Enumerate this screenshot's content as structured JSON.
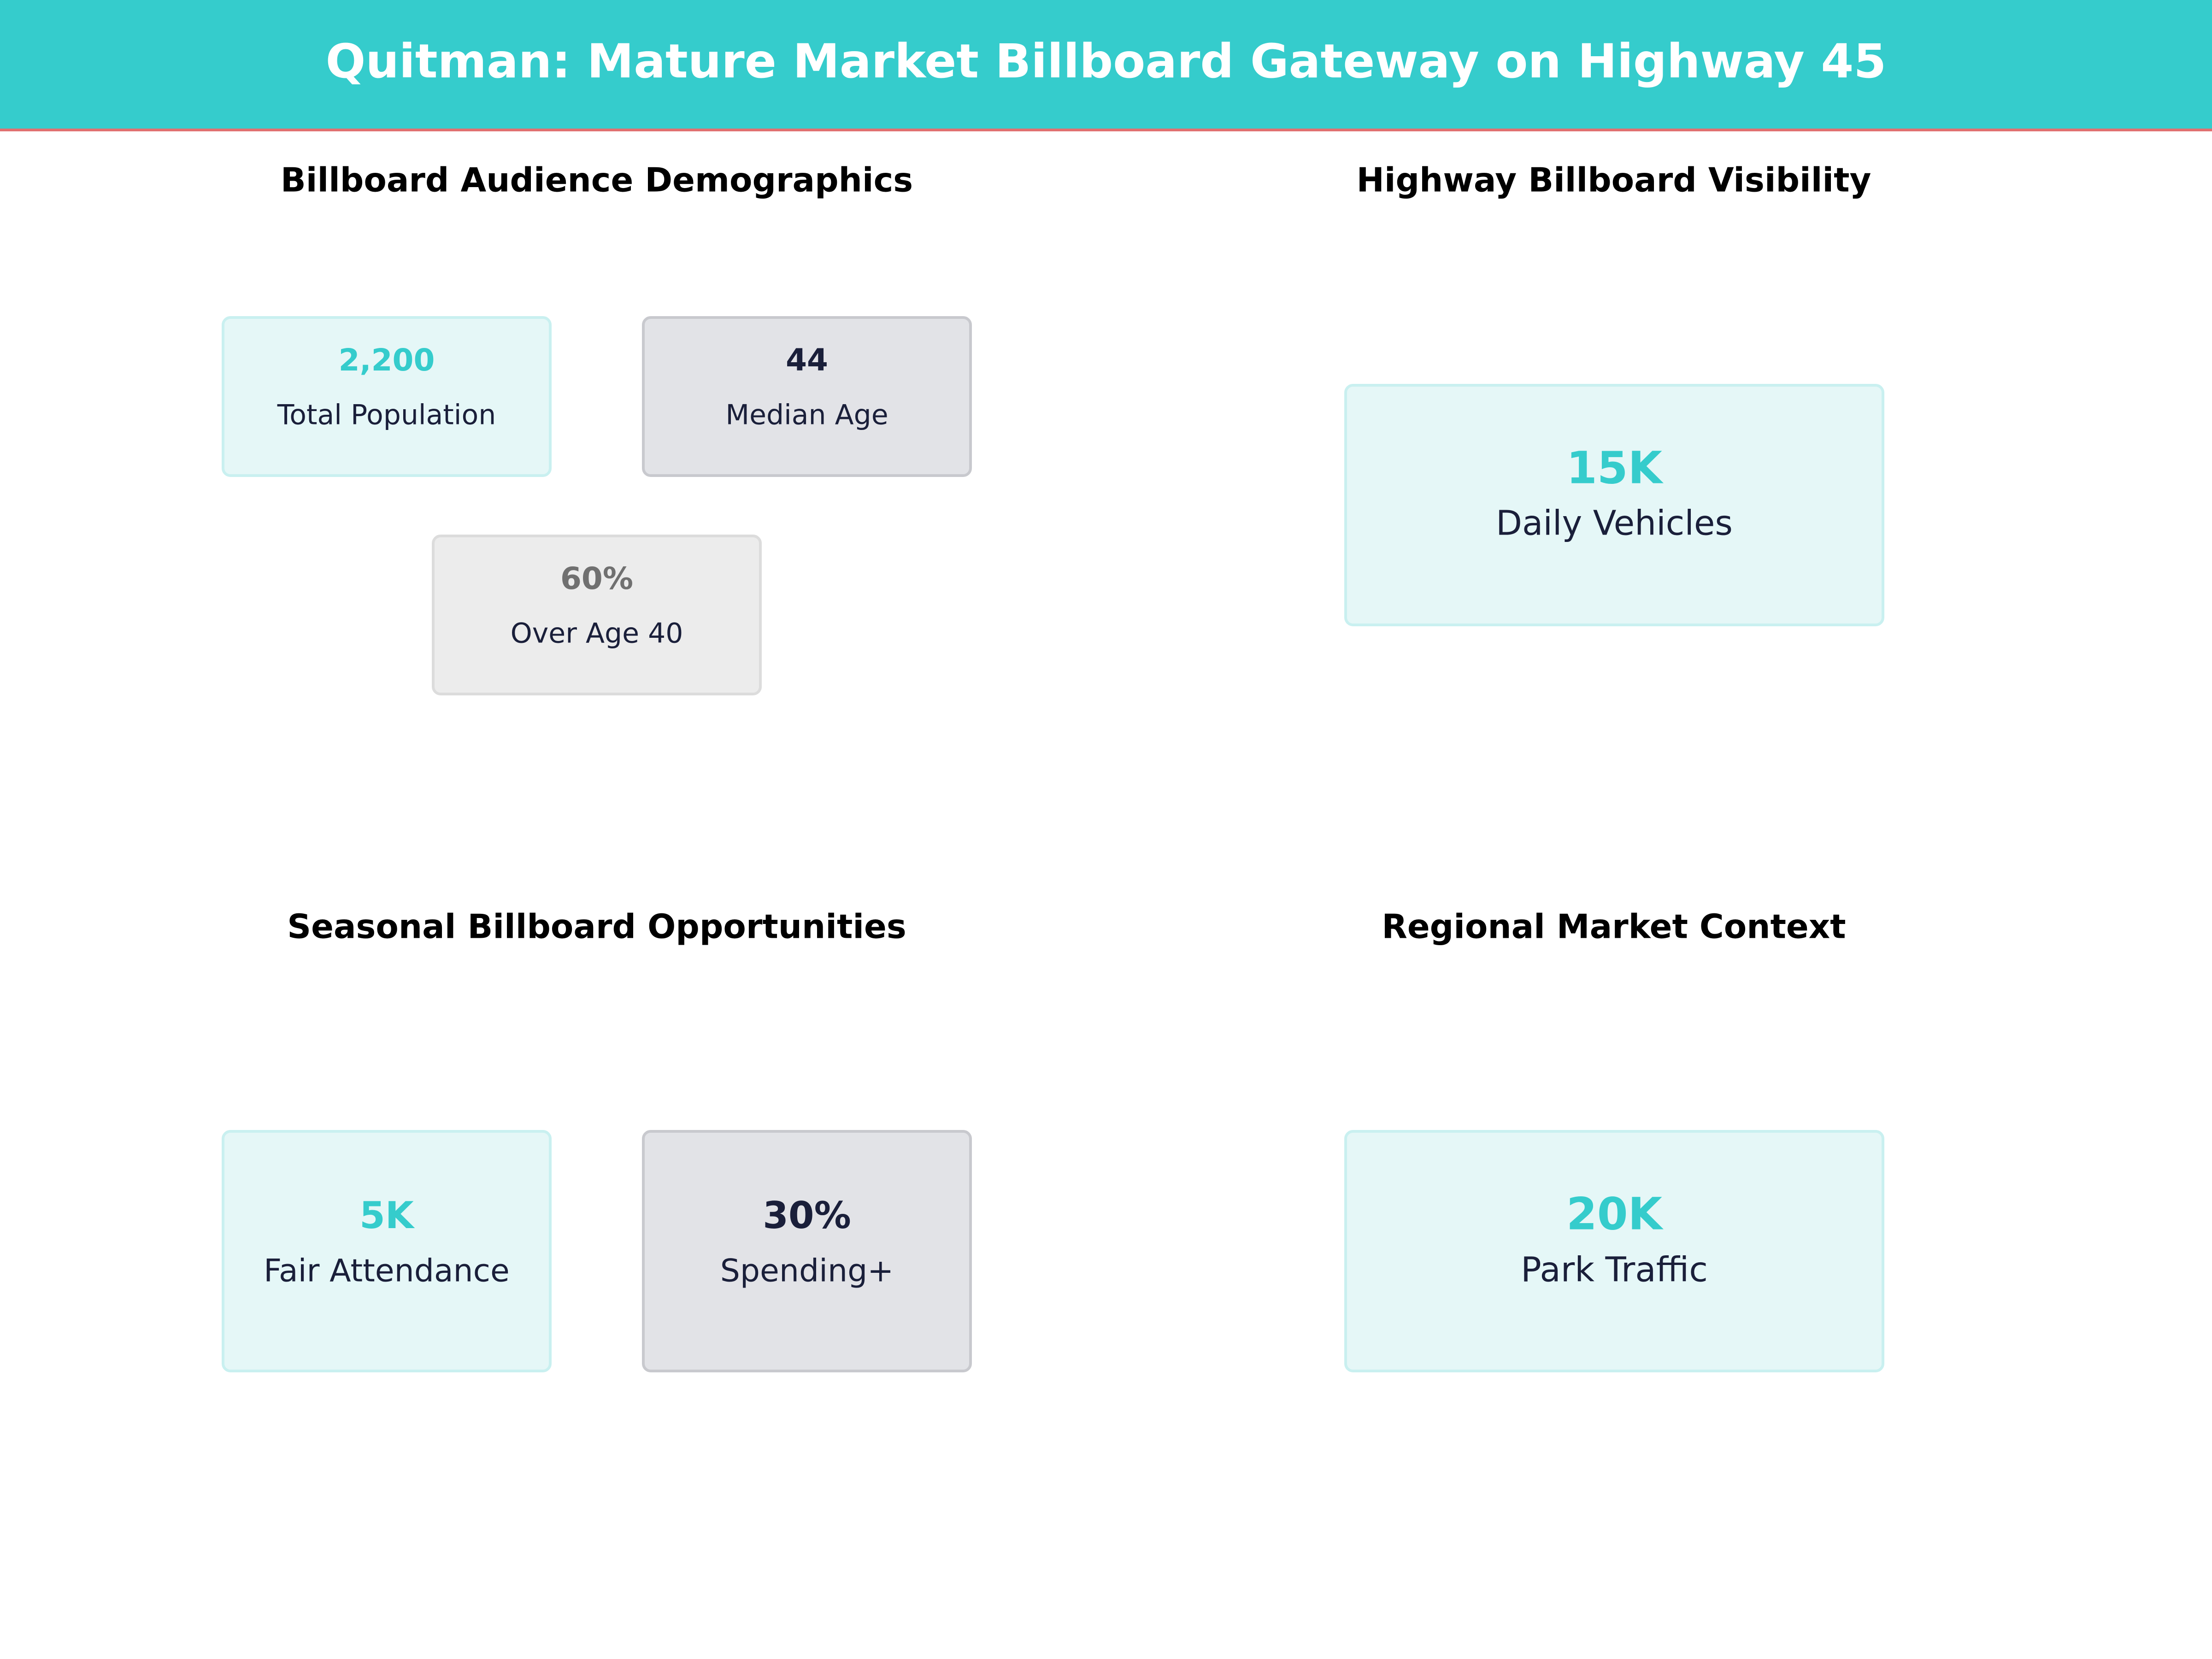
{
  "header": {
    "title": "Quitman: Mature Market Billboard Gateway on Highway 45"
  },
  "panels": [
    {
      "title": "Billboard Audience Demographics",
      "cards": [
        {
          "value": "2,200",
          "label": "Total Population"
        },
        {
          "value": "44",
          "label": "Median Age"
        },
        {
          "value": "60%",
          "label": "Over Age 40"
        }
      ]
    },
    {
      "title": "Highway Billboard Visibility",
      "cards": [
        {
          "value": "15K",
          "label": "Daily Vehicles"
        }
      ]
    },
    {
      "title": "Seasonal Billboard Opportunities",
      "cards": [
        {
          "value": "5K",
          "label": "Fair Attendance"
        },
        {
          "value": "30%",
          "label": "Spending+"
        }
      ]
    },
    {
      "title": "Regional Market Context",
      "cards": [
        {
          "value": "20K",
          "label": "Park Traffic"
        }
      ]
    }
  ]
}
